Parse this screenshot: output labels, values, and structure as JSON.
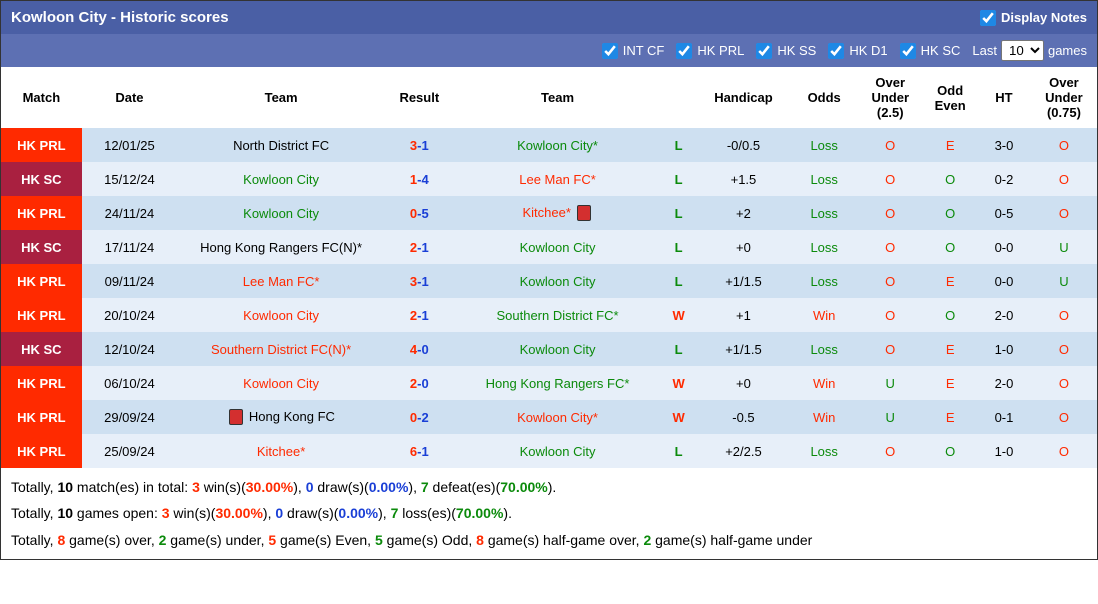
{
  "header": {
    "title": "Kowloon City - Historic scores",
    "display_notes_label": "Display Notes",
    "display_notes_checked": true
  },
  "filters": {
    "items": [
      {
        "label": "INT CF",
        "checked": true
      },
      {
        "label": "HK PRL",
        "checked": true
      },
      {
        "label": "HK SS",
        "checked": true
      },
      {
        "label": "HK D1",
        "checked": true
      },
      {
        "label": "HK SC",
        "checked": true
      }
    ],
    "last_prefix": "Last",
    "last_value": "10",
    "last_suffix": "games"
  },
  "columns": [
    "Match",
    "Date",
    "Team",
    "Result",
    "Team",
    "",
    "Handicap",
    "Odds",
    "Over Under (2.5)",
    "Odd Even",
    "HT",
    "Over Under (0.75)"
  ],
  "rows": [
    {
      "match": "HK PRL",
      "matchbg": "bg-red",
      "date": "12/01/25",
      "team1": "North District FC",
      "team1cls": "team-black",
      "team1card": false,
      "res_h": "3",
      "res_a": "1",
      "team2": "Kowloon City*",
      "team2cls": "team-green",
      "team2card": false,
      "wl": "L",
      "hcap": "-0/0.5",
      "odds": "Loss",
      "ou25": "O",
      "oe": "E",
      "ht": "3-0",
      "ou075": "O"
    },
    {
      "match": "HK SC",
      "matchbg": "bg-darkred",
      "date": "15/12/24",
      "team1": "Kowloon City",
      "team1cls": "team-green",
      "team1card": false,
      "res_h": "1",
      "res_a": "4",
      "team2": "Lee Man FC*",
      "team2cls": "team-red",
      "team2card": false,
      "wl": "L",
      "hcap": "+1.5",
      "odds": "Loss",
      "ou25": "O",
      "oe": "O",
      "ht": "0-2",
      "ou075": "O"
    },
    {
      "match": "HK PRL",
      "matchbg": "bg-red",
      "date": "24/11/24",
      "team1": "Kowloon City",
      "team1cls": "team-green",
      "team1card": false,
      "res_h": "0",
      "res_a": "5",
      "team2": "Kitchee*",
      "team2cls": "team-red",
      "team2card": true,
      "wl": "L",
      "hcap": "+2",
      "odds": "Loss",
      "ou25": "O",
      "oe": "O",
      "ht": "0-5",
      "ou075": "O"
    },
    {
      "match": "HK SC",
      "matchbg": "bg-darkred",
      "date": "17/11/24",
      "team1": "Hong Kong Rangers FC(N)*",
      "team1cls": "team-black",
      "team1card": false,
      "res_h": "2",
      "res_a": "1",
      "team2": "Kowloon City",
      "team2cls": "team-green",
      "team2card": false,
      "wl": "L",
      "hcap": "+0",
      "odds": "Loss",
      "ou25": "O",
      "oe": "O",
      "ht": "0-0",
      "ou075": "U"
    },
    {
      "match": "HK PRL",
      "matchbg": "bg-red",
      "date": "09/11/24",
      "team1": "Lee Man FC*",
      "team1cls": "team-red",
      "team1card": false,
      "res_h": "3",
      "res_a": "1",
      "team2": "Kowloon City",
      "team2cls": "team-green",
      "team2card": false,
      "wl": "L",
      "hcap": "+1/1.5",
      "odds": "Loss",
      "ou25": "O",
      "oe": "E",
      "ht": "0-0",
      "ou075": "U"
    },
    {
      "match": "HK PRL",
      "matchbg": "bg-red",
      "date": "20/10/24",
      "team1": "Kowloon City",
      "team1cls": "team-red",
      "team1card": false,
      "res_h": "2",
      "res_a": "1",
      "team2": "Southern District FC*",
      "team2cls": "team-green",
      "team2card": false,
      "wl": "W",
      "hcap": "+1",
      "odds": "Win",
      "ou25": "O",
      "oe": "O",
      "ht": "2-0",
      "ou075": "O"
    },
    {
      "match": "HK SC",
      "matchbg": "bg-darkred",
      "date": "12/10/24",
      "team1": "Southern District FC(N)*",
      "team1cls": "team-red",
      "team1card": false,
      "res_h": "4",
      "res_a": "0",
      "team2": "Kowloon City",
      "team2cls": "team-green",
      "team2card": false,
      "wl": "L",
      "hcap": "+1/1.5",
      "odds": "Loss",
      "ou25": "O",
      "oe": "E",
      "ht": "1-0",
      "ou075": "O"
    },
    {
      "match": "HK PRL",
      "matchbg": "bg-red",
      "date": "06/10/24",
      "team1": "Kowloon City",
      "team1cls": "team-red",
      "team1card": false,
      "res_h": "2",
      "res_a": "0",
      "team2": "Hong Kong Rangers FC*",
      "team2cls": "team-green",
      "team2card": false,
      "wl": "W",
      "hcap": "+0",
      "odds": "Win",
      "ou25": "U",
      "oe": "E",
      "ht": "2-0",
      "ou075": "O"
    },
    {
      "match": "HK PRL",
      "matchbg": "bg-red",
      "date": "29/09/24",
      "team1": "Hong Kong FC",
      "team1cls": "team-black",
      "team1card": true,
      "res_h": "0",
      "res_a": "2",
      "team2": "Kowloon City*",
      "team2cls": "team-red",
      "team2card": false,
      "wl": "W",
      "hcap": "-0.5",
      "odds": "Win",
      "ou25": "U",
      "oe": "E",
      "ht": "0-1",
      "ou075": "O"
    },
    {
      "match": "HK PRL",
      "matchbg": "bg-red",
      "date": "25/09/24",
      "team1": "Kitchee*",
      "team1cls": "team-red",
      "team1card": false,
      "res_h": "6",
      "res_a": "1",
      "team2": "Kowloon City",
      "team2cls": "team-green",
      "team2card": false,
      "wl": "L",
      "hcap": "+2/2.5",
      "odds": "Loss",
      "ou25": "O",
      "oe": "O",
      "ht": "1-0",
      "ou075": "O"
    }
  ],
  "summary": {
    "line1_prefix": "Totally, ",
    "line1_total": "10",
    "line1_mid1": " match(es) in total: ",
    "line1_wins": "3",
    "line1_winlbl": " win(s)(",
    "line1_winpct": "30.00%",
    "line1_mid2": "), ",
    "line1_draws": "0",
    "line1_drawlbl": " draw(s)(",
    "line1_drawpct": "0.00%",
    "line1_mid3": "), ",
    "line1_def": "7",
    "line1_deflbl": " defeat(es)(",
    "line1_defpct": "70.00%",
    "line1_end": ").",
    "line2_prefix": "Totally, ",
    "line2_total": "10",
    "line2_mid1": " games open: ",
    "line2_wins": "3",
    "line2_winlbl": " win(s)(",
    "line2_winpct": "30.00%",
    "line2_mid2": "), ",
    "line2_draws": "0",
    "line2_drawlbl": " draw(s)(",
    "line2_drawpct": "0.00%",
    "line2_mid3": "), ",
    "line2_loss": "7",
    "line2_losslbl": " loss(es)(",
    "line2_losspct": "70.00%",
    "line2_end": ").",
    "line3_prefix": "Totally, ",
    "line3_over": "8",
    "line3_overlbl": " game(s) over, ",
    "line3_under": "2",
    "line3_underlbl": " game(s) under, ",
    "line3_even": "5",
    "line3_evenlbl": " game(s) Even, ",
    "line3_odd": "5",
    "line3_oddlbl": " game(s) Odd, ",
    "line3_hover": "8",
    "line3_hoverlbl": " game(s) half-game over, ",
    "line3_hunder": "2",
    "line3_hunderlbl": " game(s) half-game under"
  }
}
